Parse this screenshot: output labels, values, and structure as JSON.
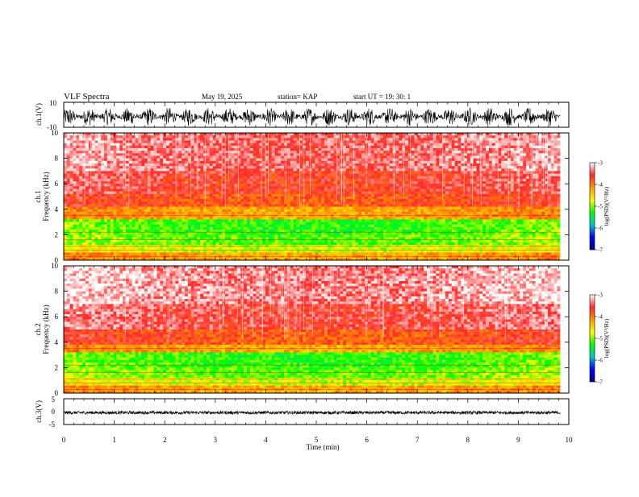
{
  "header": {
    "title": "VLF Spectra",
    "date": "May 19, 2025",
    "station": "station= KAP",
    "start": "start  UT =   19: 30: 1"
  },
  "chart_data": [
    {
      "type": "line",
      "name": "ch1-waveform",
      "ylabel": "ch.1(V)",
      "ylim": [
        -10,
        10
      ],
      "yticks": [
        "10",
        "-10"
      ],
      "xlim": [
        0,
        10
      ],
      "x_extent": 9.83,
      "amplitude_range": [
        -9,
        6
      ]
    },
    {
      "type": "heatmap",
      "name": "ch1-spectrogram",
      "ylabel": "ch.1\nFrequency (kHz)",
      "ylim": [
        0,
        10
      ],
      "yticks": [
        "0",
        "2",
        "4",
        "6",
        "8",
        "10"
      ],
      "xlim": [
        0,
        10
      ],
      "x_extent": 9.83,
      "bands_khz": [
        {
          "from": 0.0,
          "to": 0.6,
          "level": -4.0
        },
        {
          "from": 0.6,
          "to": 1.2,
          "level": -4.6
        },
        {
          "from": 1.2,
          "to": 2.0,
          "level": -4.9
        },
        {
          "from": 2.0,
          "to": 3.2,
          "level": -5.0
        },
        {
          "from": 3.2,
          "to": 4.2,
          "level": -4.0
        },
        {
          "from": 4.2,
          "to": 5.2,
          "level": -3.6
        },
        {
          "from": 5.2,
          "to": 7.0,
          "level": -3.4
        },
        {
          "from": 7.0,
          "to": 10.0,
          "level": -3.2
        }
      ]
    },
    {
      "type": "heatmap",
      "name": "ch2-spectrogram",
      "ylabel": "ch.2\nFrequency (kHz)",
      "ylim": [
        0,
        10
      ],
      "yticks": [
        "0",
        "2",
        "4",
        "6",
        "8",
        "10"
      ],
      "xlim": [
        0,
        10
      ],
      "x_extent": 9.83,
      "bands_khz": [
        {
          "from": 0.0,
          "to": 0.6,
          "level": -4.0
        },
        {
          "from": 0.6,
          "to": 1.2,
          "level": -4.6
        },
        {
          "from": 1.2,
          "to": 2.0,
          "level": -4.9
        },
        {
          "from": 2.0,
          "to": 3.2,
          "level": -5.0
        },
        {
          "from": 3.2,
          "to": 3.9,
          "level": -4.0
        },
        {
          "from": 3.9,
          "to": 5.0,
          "level": -3.6
        },
        {
          "from": 5.0,
          "to": 7.0,
          "level": -3.3
        },
        {
          "from": 7.0,
          "to": 10.0,
          "level": -3.1
        }
      ]
    },
    {
      "type": "line",
      "name": "ch3-waveform",
      "ylabel": "ch.3(V)",
      "ylim": [
        -5,
        5
      ],
      "yticks": [
        "5",
        "0",
        "-5"
      ],
      "xlim": [
        0,
        10
      ],
      "x_extent": 9.83,
      "amplitude_range": [
        -1.0,
        0.2
      ]
    }
  ],
  "x_axis": {
    "label": "Time (min)",
    "ticks": [
      "0",
      "1",
      "2",
      "3",
      "4",
      "5",
      "6",
      "7",
      "8",
      "9",
      "10"
    ]
  },
  "colorbar": {
    "label": "log(PSD)(V²/Hz)",
    "ticks": [
      "-3",
      "-4",
      "-5",
      "-6",
      "-7"
    ],
    "range": [
      -7,
      -3
    ],
    "colors": [
      "#ffffff",
      "#ff2a2a",
      "#ff9900",
      "#ffff00",
      "#00ff00",
      "#00c8c8",
      "#0000ff",
      "#000080"
    ]
  }
}
